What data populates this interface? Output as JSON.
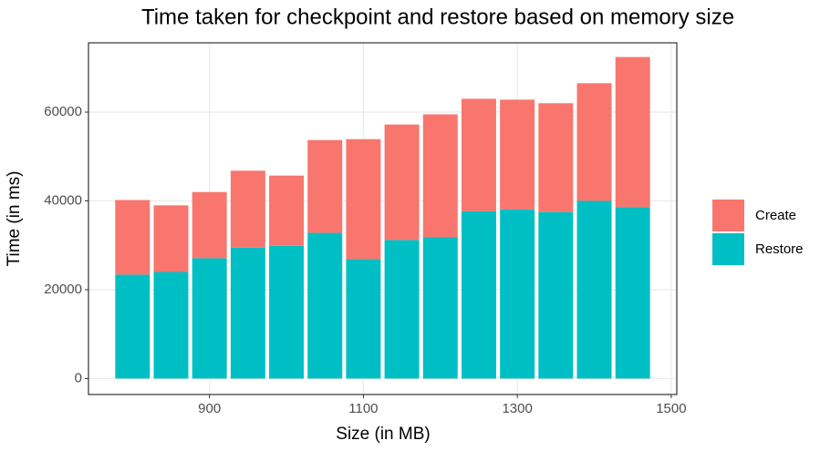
{
  "chart_data": {
    "type": "stacked_bar",
    "title": "Time taken for checkpoint and restore based on memory size",
    "x_label": "Size (in MB)",
    "y_label": "Time (in ms)",
    "x": [
      800,
      850,
      900,
      950,
      1000,
      1050,
      1100,
      1150,
      1200,
      1250,
      1300,
      1350,
      1400,
      1450
    ],
    "series": [
      {
        "name": "Create",
        "color": "#F8766D",
        "values": [
          16800,
          15000,
          14900,
          17300,
          15800,
          20900,
          27000,
          26000,
          27700,
          25300,
          24700,
          24500,
          26500,
          33800
        ]
      },
      {
        "name": "Restore",
        "color": "#00BFC4",
        "values": [
          23400,
          24000,
          27100,
          29500,
          29900,
          32800,
          26900,
          31200,
          31800,
          37700,
          38100,
          37500,
          40000,
          38600
        ]
      }
    ],
    "xlim": [
      742.75,
      1507.25
    ],
    "ylim": [
      -3600,
      75600
    ],
    "xticks": [
      900,
      1100,
      1300,
      1500
    ],
    "yticks": [
      0,
      20000,
      40000,
      60000
    ],
    "grid": true,
    "legend_position": "right"
  }
}
